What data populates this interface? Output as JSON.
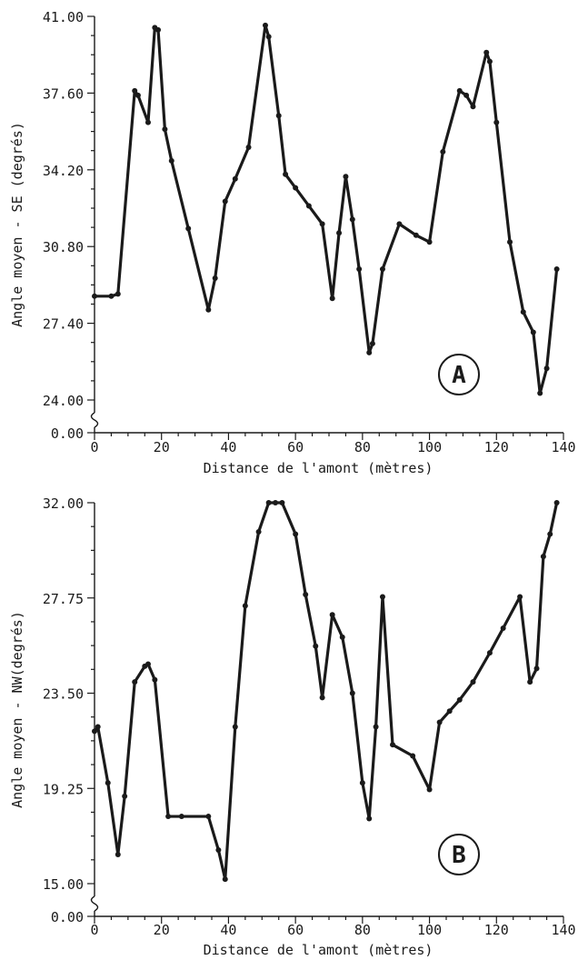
{
  "chart_data": [
    {
      "type": "line",
      "panel_label": "A",
      "xlabel": "Distance de l'amont (mètres)",
      "ylabel": "Angle moyen - SE (degrés)",
      "xlim": [
        0,
        140
      ],
      "ylim": [
        24.0,
        41.0
      ],
      "x_ticks": [
        "0",
        "20",
        "40",
        "60",
        "80",
        "100",
        "120",
        "140"
      ],
      "y_ticks": [
        "41.00",
        "37.60",
        "34.20",
        "30.80",
        "27.40",
        "24.00"
      ],
      "y_zero_label": "0.00",
      "axis_break": true,
      "grid": false,
      "series": [
        {
          "x": [
            0,
            5,
            7,
            12,
            13,
            16,
            18,
            19,
            21,
            23,
            28,
            34,
            36,
            39,
            42,
            46,
            51,
            52,
            55,
            57,
            60,
            64,
            68,
            71,
            73,
            75,
            77,
            79,
            82,
            83,
            86,
            91,
            96,
            100,
            104,
            109,
            111,
            113,
            117,
            118,
            120,
            124,
            128,
            131,
            133,
            135,
            138
          ],
          "y": [
            28.6,
            28.6,
            28.7,
            37.7,
            37.5,
            36.3,
            40.5,
            40.4,
            36.0,
            34.6,
            31.6,
            28.0,
            29.4,
            32.8,
            33.8,
            35.2,
            40.6,
            40.1,
            36.6,
            34.0,
            33.4,
            32.6,
            31.8,
            28.5,
            31.4,
            33.9,
            32.0,
            29.8,
            26.1,
            26.5,
            29.8,
            31.8,
            31.3,
            31.0,
            35.0,
            37.7,
            37.5,
            37.0,
            39.4,
            39.0,
            36.3,
            31.0,
            27.9,
            27.0,
            24.3,
            25.4,
            29.8
          ]
        }
      ]
    },
    {
      "type": "line",
      "panel_label": "B",
      "xlabel": "Distance de l'amont (mètres)",
      "ylabel": "Angle moyen - NW(degrés)",
      "xlim": [
        0,
        140
      ],
      "ylim": [
        15.0,
        32.0
      ],
      "x_ticks": [
        "0",
        "20",
        "40",
        "60",
        "80",
        "100",
        "120",
        "140"
      ],
      "y_ticks": [
        "32.00",
        "27.75",
        "23.50",
        "19.25",
        "15.00"
      ],
      "y_zero_label": "0.00",
      "axis_break": true,
      "grid": false,
      "series": [
        {
          "x": [
            0,
            1,
            4,
            7,
            9,
            12,
            15,
            16,
            18,
            22,
            26,
            34,
            37,
            39,
            42,
            45,
            49,
            52,
            54,
            56,
            60,
            63,
            66,
            68,
            71,
            74,
            77,
            80,
            82,
            84,
            86,
            89,
            95,
            100,
            103,
            106,
            109,
            113,
            118,
            122,
            127,
            130,
            132,
            134,
            136,
            138
          ],
          "y": [
            21.8,
            22.0,
            19.5,
            16.3,
            18.9,
            24.0,
            24.7,
            24.8,
            24.1,
            18.0,
            18.0,
            18.0,
            16.5,
            15.2,
            22.0,
            27.4,
            30.7,
            32.0,
            32.0,
            32.0,
            30.6,
            27.9,
            25.6,
            23.3,
            27.0,
            26.0,
            23.5,
            19.5,
            17.9,
            22.0,
            27.8,
            21.2,
            20.7,
            19.2,
            22.2,
            22.7,
            23.2,
            24.0,
            25.3,
            26.4,
            27.8,
            24.0,
            24.6,
            29.6,
            30.6,
            32.0
          ]
        }
      ]
    }
  ]
}
